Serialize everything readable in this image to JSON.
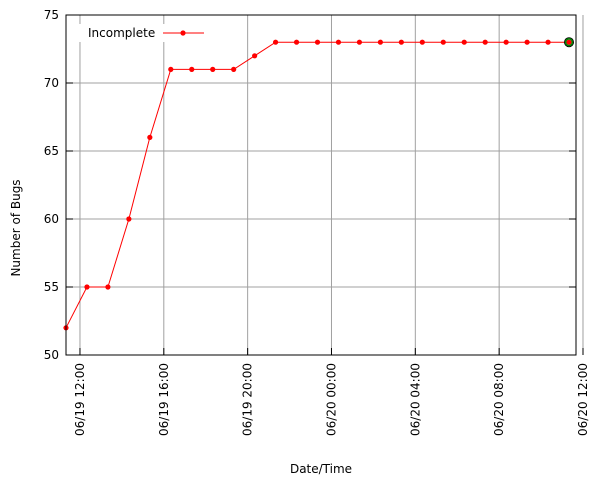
{
  "chart_data": {
    "type": "line",
    "title": "",
    "xlabel": "Date/Time",
    "ylabel": "Number of Bugs",
    "ylim": [
      50,
      75
    ],
    "yticks": [
      50,
      55,
      60,
      65,
      70,
      75
    ],
    "xlim": [
      "06/19 11:20",
      "06/20 11:40"
    ],
    "xticks": [
      {
        "label": "06/19 12:00",
        "t": "06/19 12:00"
      },
      {
        "label": "06/19 16:00",
        "t": "06/19 16:00"
      },
      {
        "label": "06/19 20:00",
        "t": "06/19 20:00"
      },
      {
        "label": "06/20 00:00",
        "t": "06/20 00:00"
      },
      {
        "label": "06/20 04:00",
        "t": "06/20 04:00"
      },
      {
        "label": "06/20 08:00",
        "t": "06/20 08:00"
      },
      {
        "label": "06/20 12:00",
        "t": "06/20 12:00"
      }
    ],
    "grid": true,
    "legend_position": "top-left",
    "series": [
      {
        "name": "Incomplete",
        "color": "#ff0000",
        "x": [
          "06/19 11:20",
          "06/19 12:20",
          "06/19 13:20",
          "06/19 14:20",
          "06/19 15:20",
          "06/19 16:20",
          "06/19 17:20",
          "06/19 18:20",
          "06/19 19:20",
          "06/19 20:20",
          "06/19 21:20",
          "06/19 22:20",
          "06/19 23:20",
          "06/20 00:20",
          "06/20 01:20",
          "06/20 02:20",
          "06/20 03:20",
          "06/20 04:20",
          "06/20 05:20",
          "06/20 06:20",
          "06/20 07:20",
          "06/20 08:20",
          "06/20 09:20",
          "06/20 10:20",
          "06/20 11:20"
        ],
        "values": [
          52,
          55,
          55,
          60,
          66,
          71,
          71,
          71,
          71,
          72,
          73,
          73,
          73,
          73,
          73,
          73,
          73,
          73,
          73,
          73,
          73,
          73,
          73,
          73,
          73
        ]
      }
    ],
    "highlight_last_point": true,
    "highlight_color": "#008000"
  }
}
